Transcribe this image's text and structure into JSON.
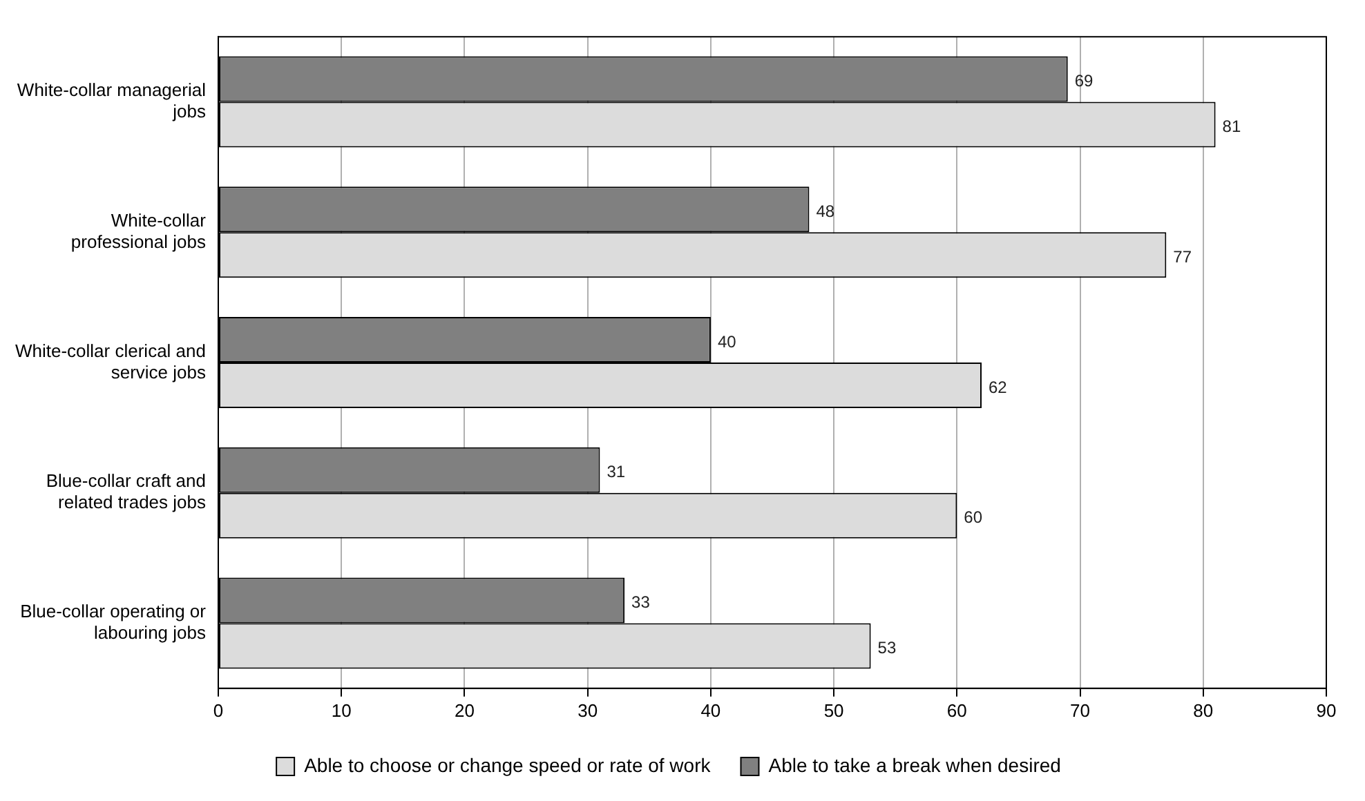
{
  "chart_data": {
    "type": "bar",
    "orientation": "horizontal",
    "categories": [
      "White-collar managerial jobs",
      "White-collar professional jobs",
      "White-collar clerical and service jobs",
      "Blue-collar craft and related trades jobs",
      "Blue-collar operating or labouring jobs"
    ],
    "series": [
      {
        "name": "Able to take a break when desired",
        "color": "#808080",
        "values": [
          69,
          48,
          40,
          31,
          33
        ]
      },
      {
        "name": "Able to choose or change speed or rate of work",
        "color": "#dcdcdc",
        "values": [
          81,
          77,
          62,
          60,
          53
        ]
      }
    ],
    "xlim": [
      0,
      90
    ],
    "xticks": [
      0,
      10,
      20,
      30,
      40,
      50,
      60,
      70,
      80,
      90
    ],
    "grid": "x",
    "legend": "bottom",
    "data_labels": true
  }
}
